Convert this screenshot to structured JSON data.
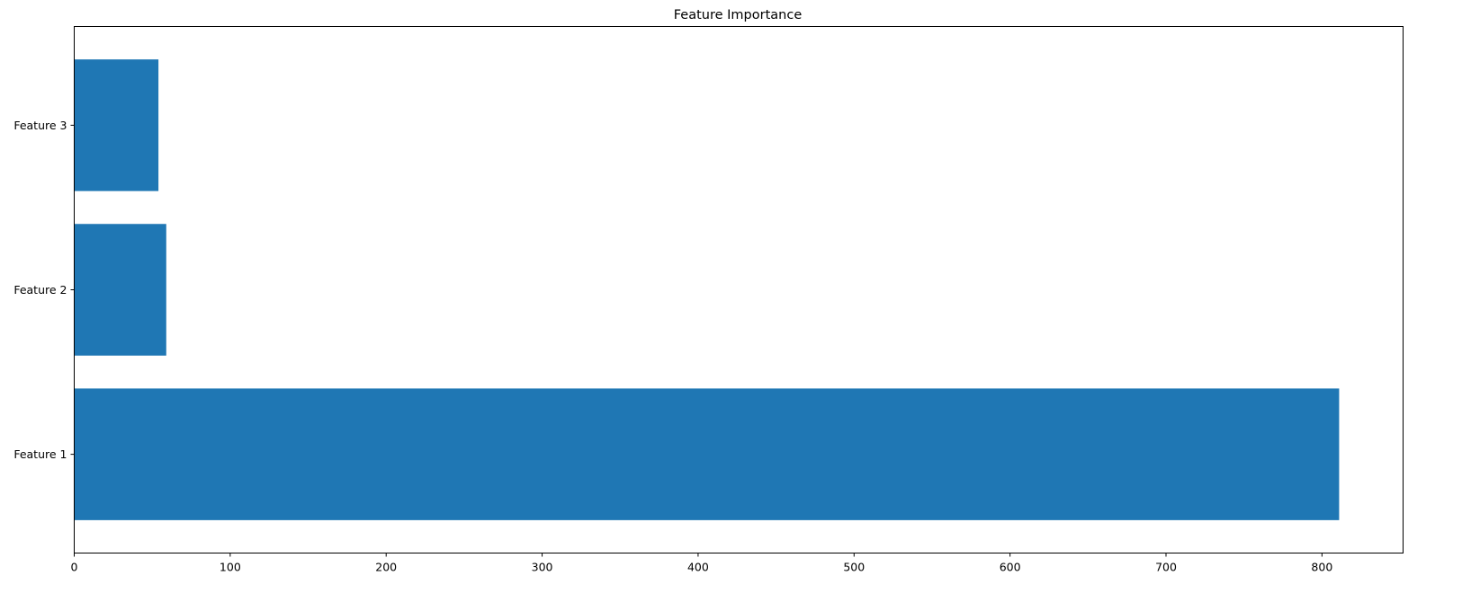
{
  "chart_data": {
    "type": "bar",
    "orientation": "horizontal",
    "title": "Feature Importance",
    "xlabel": "",
    "ylabel": "",
    "categories": [
      "Feature 1",
      "Feature 2",
      "Feature 3"
    ],
    "values": [
      811,
      59,
      54
    ],
    "xlim": [
      0,
      852
    ],
    "xticks": [
      0,
      100,
      200,
      300,
      400,
      500,
      600,
      700,
      800
    ],
    "grid": false,
    "legend": "none",
    "bar_color": "#1f77b4"
  }
}
